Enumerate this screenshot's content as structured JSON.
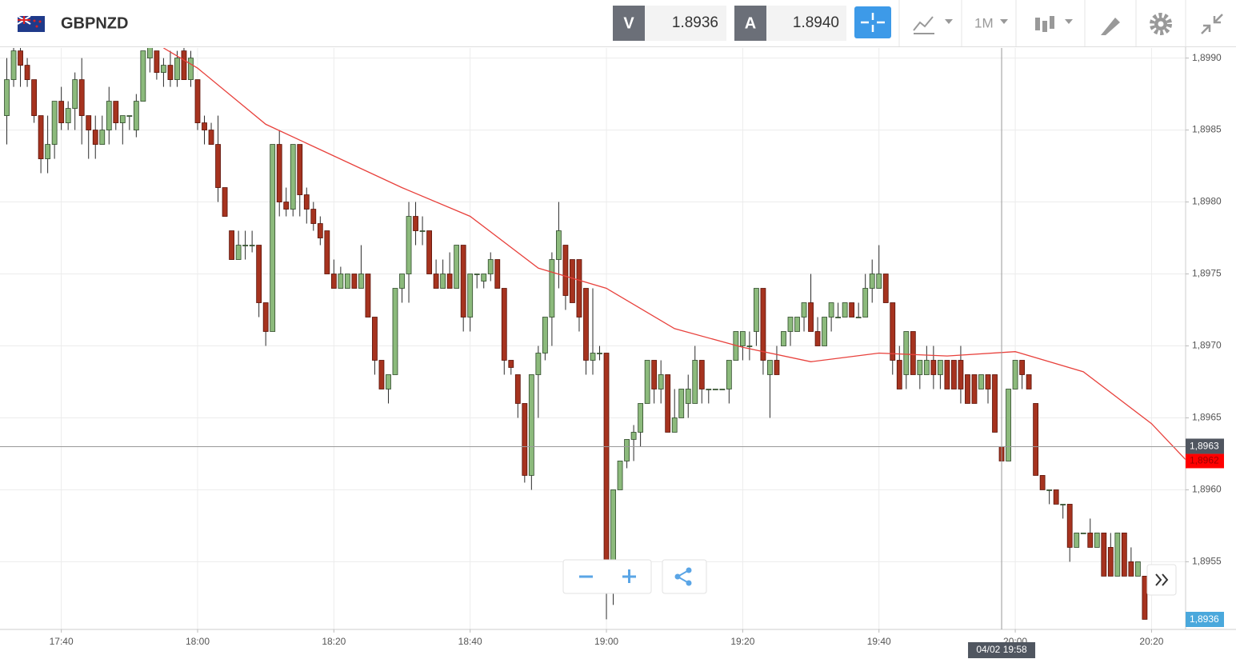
{
  "header": {
    "symbol": "GBPNZD",
    "bid_label": "V",
    "bid": "1.8936",
    "ask_label": "A",
    "ask": "1.8940",
    "timeframe": "1M"
  },
  "chart_data": {
    "type": "candlestick",
    "up_color": "#8cba7c",
    "down_color": "#a6331f",
    "grid": true,
    "x": [
      "17:32",
      "17:33",
      "17:34",
      "17:35",
      "17:36",
      "17:37",
      "17:38",
      "17:39",
      "17:40",
      "17:41",
      "17:42",
      "17:43",
      "17:44",
      "17:45",
      "17:46",
      "17:47",
      "17:48",
      "17:49",
      "17:50",
      "17:51",
      "17:52",
      "17:53",
      "17:54",
      "17:55",
      "17:56",
      "17:57",
      "17:58",
      "17:59",
      "18:00",
      "18:01",
      "18:02",
      "18:03",
      "18:04",
      "18:05",
      "18:06",
      "18:07",
      "18:08",
      "18:09",
      "18:10",
      "18:11",
      "18:12",
      "18:13",
      "18:14",
      "18:15",
      "18:16",
      "18:17",
      "18:18",
      "18:19",
      "18:20",
      "18:21",
      "18:22",
      "18:23",
      "18:24",
      "18:25",
      "18:26",
      "18:27",
      "18:28",
      "18:29",
      "18:30",
      "18:31",
      "18:32",
      "18:33",
      "18:34",
      "18:35",
      "18:36",
      "18:37",
      "18:38",
      "18:39",
      "18:40",
      "18:41",
      "18:42",
      "18:43",
      "18:44",
      "18:45",
      "18:46",
      "18:47",
      "18:48",
      "18:49",
      "18:50",
      "18:51",
      "18:52",
      "18:53",
      "18:54",
      "18:55",
      "18:56",
      "18:57",
      "18:58",
      "18:59",
      "19:00",
      "19:01",
      "19:02",
      "19:03",
      "19:04",
      "19:05",
      "19:06",
      "19:07",
      "19:08",
      "19:09",
      "19:10",
      "19:11",
      "19:12",
      "19:13",
      "19:14",
      "19:15",
      "19:16",
      "19:17",
      "19:18",
      "19:19",
      "19:20",
      "19:21",
      "19:22",
      "19:23",
      "19:24",
      "19:25",
      "19:26",
      "19:27",
      "19:28",
      "19:29",
      "19:30",
      "19:31",
      "19:32",
      "19:33",
      "19:34",
      "19:35",
      "19:36",
      "19:37",
      "19:38",
      "19:39",
      "19:40",
      "19:41",
      "19:42",
      "19:43",
      "19:44",
      "19:45",
      "19:46",
      "19:47",
      "19:48",
      "19:49",
      "19:50",
      "19:51",
      "19:52",
      "19:53",
      "19:54",
      "19:55",
      "19:56",
      "19:57",
      "19:58",
      "19:59",
      "20:00",
      "20:01",
      "20:02",
      "20:03",
      "20:04",
      "20:05",
      "20:06",
      "20:07",
      "20:08",
      "20:09",
      "20:10",
      "20:11",
      "20:12",
      "20:13",
      "20:14",
      "20:15",
      "20:16",
      "20:17",
      "20:18",
      "20:19"
    ],
    "open": [
      1.8986,
      1.89885,
      1.89905,
      1.89895,
      1.89885,
      1.8986,
      1.8983,
      1.8984,
      1.8987,
      1.89855,
      1.89865,
      1.89885,
      1.8986,
      1.8985,
      1.8984,
      1.8985,
      1.8987,
      1.89855,
      1.8986,
      1.8985,
      1.8987,
      1.899,
      1.89905,
      1.8989,
      1.89895,
      1.89885,
      1.89905,
      1.89885,
      1.89885,
      1.89855,
      1.8985,
      1.8984,
      1.8981,
      1.8978,
      1.8976,
      1.8977,
      1.8977,
      1.8977,
      1.8973,
      1.8971,
      1.8984,
      1.898,
      1.89795,
      1.8984,
      1.89805,
      1.89795,
      1.89785,
      1.8978,
      1.8975,
      1.8974,
      1.8974,
      1.8975,
      1.8974,
      1.8975,
      1.8972,
      1.8969,
      1.8967,
      1.8968,
      1.8974,
      1.8975,
      1.8979,
      1.8978,
      1.8978,
      1.8975,
      1.8974,
      1.8975,
      1.8974,
      1.8977,
      1.8972,
      1.8975,
      1.89745,
      1.8975,
      1.8976,
      1.8974,
      1.8969,
      1.8968,
      1.8966,
      1.8961,
      1.8968,
      1.89695,
      1.8972,
      1.8976,
      1.8977,
      1.8976,
      1.8976,
      1.8974,
      1.8969,
      1.89695,
      1.89695,
      1.8954,
      1.896,
      1.8962,
      1.89635,
      1.8964,
      1.8966,
      1.8969,
      1.8967,
      1.8968,
      1.8964,
      1.8965,
      1.8966,
      1.8966,
      1.8969,
      1.8967,
      1.8967,
      1.8967,
      1.8967,
      1.8969,
      1.897,
      1.897,
      1.8971,
      1.8974,
      1.8968,
      1.8969,
      1.897,
      1.8971,
      1.8971,
      1.8972,
      1.8973,
      1.8971,
      1.897,
      1.8972,
      1.8972,
      1.8972,
      1.8973,
      1.8972,
      1.8972,
      1.8974,
      1.8974,
      1.8975,
      1.8973,
      1.8969,
      1.8968,
      1.8971,
      1.8968,
      1.8968,
      1.8969,
      1.8968,
      1.8969,
      1.8969,
      1.8969,
      1.8968,
      1.8968,
      1.8967,
      1.8968,
      1.8968,
      1.8963,
      1.8962,
      1.8967,
      1.8969,
      1.8968,
      1.8966,
      1.8961,
      1.896,
      1.896,
      1.8959,
      1.8959,
      1.8956,
      1.8957,
      1.8957,
      1.8956,
      1.8957,
      1.8956,
      1.8954,
      1.8957,
      1.8955,
      1.8954,
      1.8954
    ],
    "high": [
      1.899,
      1.8991,
      1.8991,
      1.899,
      1.89885,
      1.8986,
      1.8986,
      1.8987,
      1.8988,
      1.8987,
      1.8989,
      1.899,
      1.8986,
      1.8986,
      1.8986,
      1.8988,
      1.8987,
      1.8986,
      1.8986,
      1.89875,
      1.89905,
      1.8991,
      1.89905,
      1.899,
      1.89905,
      1.89905,
      1.8991,
      1.89905,
      1.89885,
      1.8986,
      1.89855,
      1.8986,
      1.8981,
      1.8978,
      1.8978,
      1.8978,
      1.8978,
      1.8977,
      1.8973,
      1.8984,
      1.8985,
      1.8981,
      1.8984,
      1.8984,
      1.8981,
      1.898,
      1.8979,
      1.8978,
      1.8976,
      1.89755,
      1.8975,
      1.8975,
      1.8977,
      1.8975,
      1.8972,
      1.8969,
      1.8968,
      1.8974,
      1.8975,
      1.898,
      1.898,
      1.8979,
      1.8978,
      1.8976,
      1.8976,
      1.89765,
      1.8977,
      1.8977,
      1.8975,
      1.8975,
      1.8975,
      1.89765,
      1.8976,
      1.8974,
      1.8969,
      1.8968,
      1.8966,
      1.8968,
      1.897,
      1.8972,
      1.89765,
      1.898,
      1.8977,
      1.8976,
      1.8976,
      1.8974,
      1.8974,
      1.897,
      1.89695,
      1.896,
      1.8962,
      1.89635,
      1.89645,
      1.8966,
      1.8969,
      1.8969,
      1.8969,
      1.8968,
      1.8967,
      1.8967,
      1.8968,
      1.897,
      1.8969,
      1.8967,
      1.8967,
      1.8967,
      1.8969,
      1.8971,
      1.8971,
      1.8971,
      1.8974,
      1.8974,
      1.8969,
      1.897,
      1.8971,
      1.8972,
      1.8972,
      1.8973,
      1.8975,
      1.8972,
      1.8972,
      1.8973,
      1.8973,
      1.8973,
      1.8973,
      1.8973,
      1.8975,
      1.8976,
      1.8977,
      1.8975,
      1.8973,
      1.897,
      1.8971,
      1.8971,
      1.8969,
      1.897,
      1.897,
      1.8969,
      1.8969,
      1.8969,
      1.897,
      1.8968,
      1.8968,
      1.8968,
      1.8968,
      1.8968,
      1.8963,
      1.8967,
      1.8969,
      1.8969,
      1.8968,
      1.8966,
      1.8961,
      1.896,
      1.896,
      1.8959,
      1.8959,
      1.8957,
      1.8957,
      1.8958,
      1.8957,
      1.8957,
      1.8957,
      1.8957,
      1.8957,
      1.8956,
      1.8955,
      1.8954
    ],
    "low": [
      1.8984,
      1.8988,
      1.8988,
      1.8988,
      1.89855,
      1.8982,
      1.8982,
      1.8983,
      1.8985,
      1.8985,
      1.8985,
      1.8984,
      1.8983,
      1.8983,
      1.8984,
      1.8984,
      1.8985,
      1.8984,
      1.8985,
      1.89845,
      1.8987,
      1.8989,
      1.89885,
      1.8988,
      1.8988,
      1.8988,
      1.89885,
      1.8988,
      1.8985,
      1.8984,
      1.8984,
      1.898,
      1.8979,
      1.8976,
      1.8976,
      1.8976,
      1.89765,
      1.8972,
      1.897,
      1.8971,
      1.8979,
      1.8979,
      1.8979,
      1.8979,
      1.89785,
      1.8978,
      1.8977,
      1.8975,
      1.8974,
      1.8974,
      1.8974,
      1.8974,
      1.8974,
      1.8972,
      1.8968,
      1.8967,
      1.8966,
      1.8968,
      1.8973,
      1.8973,
      1.8977,
      1.8977,
      1.8975,
      1.8974,
      1.8974,
      1.8974,
      1.8974,
      1.8971,
      1.8971,
      1.8974,
      1.8974,
      1.89745,
      1.8974,
      1.8968,
      1.8968,
      1.8965,
      1.89605,
      1.896,
      1.8965,
      1.8969,
      1.897,
      1.8974,
      1.89725,
      1.8973,
      1.8971,
      1.8968,
      1.8968,
      1.8969,
      1.8951,
      1.8952,
      1.896,
      1.89615,
      1.8962,
      1.8963,
      1.8966,
      1.8966,
      1.8966,
      1.8964,
      1.8964,
      1.8965,
      1.8965,
      1.8966,
      1.8966,
      1.8966,
      1.8967,
      1.8967,
      1.8966,
      1.8969,
      1.8969,
      1.8969,
      1.897,
      1.8968,
      1.8965,
      1.8968,
      1.897,
      1.897,
      1.8971,
      1.8971,
      1.8971,
      1.897,
      1.897,
      1.8971,
      1.8972,
      1.8972,
      1.8972,
      1.8972,
      1.8972,
      1.8973,
      1.8974,
      1.8973,
      1.8968,
      1.8967,
      1.8967,
      1.8968,
      1.8967,
      1.8968,
      1.8967,
      1.8967,
      1.8967,
      1.8967,
      1.8966,
      1.8966,
      1.8966,
      1.8967,
      1.8966,
      1.8964,
      1.8962,
      1.8962,
      1.8967,
      1.8967,
      1.8967,
      1.8961,
      1.896,
      1.8959,
      1.8959,
      1.8958,
      1.8955,
      1.8956,
      1.8957,
      1.8956,
      1.8956,
      1.8954,
      1.8954,
      1.8954,
      1.8954,
      1.8954,
      1.8954,
      1.8951
    ],
    "close": [
      1.89885,
      1.89905,
      1.89895,
      1.89885,
      1.8986,
      1.8983,
      1.8984,
      1.8987,
      1.89855,
      1.89865,
      1.89885,
      1.8986,
      1.8985,
      1.8984,
      1.8985,
      1.8987,
      1.89855,
      1.8986,
      1.8986,
      1.8987,
      1.89905,
      1.8991,
      1.8989,
      1.89895,
      1.89885,
      1.899,
      1.89885,
      1.899,
      1.89855,
      1.8985,
      1.8984,
      1.8981,
      1.8979,
      1.8976,
      1.8977,
      1.8977,
      1.8977,
      1.8973,
      1.8971,
      1.8984,
      1.898,
      1.89795,
      1.8984,
      1.89805,
      1.89795,
      1.89785,
      1.89775,
      1.8975,
      1.8974,
      1.8975,
      1.8975,
      1.8974,
      1.8975,
      1.8972,
      1.8969,
      1.8967,
      1.8968,
      1.8974,
      1.8975,
      1.8979,
      1.8978,
      1.8978,
      1.8975,
      1.8974,
      1.8975,
      1.8974,
      1.8977,
      1.8972,
      1.8975,
      1.8975,
      1.8975,
      1.8976,
      1.8974,
      1.8969,
      1.89685,
      1.8966,
      1.8961,
      1.8968,
      1.89695,
      1.8972,
      1.8976,
      1.8978,
      1.89735,
      1.8973,
      1.8972,
      1.8969,
      1.89695,
      1.89695,
      1.8954,
      1.896,
      1.8962,
      1.89635,
      1.8964,
      1.8966,
      1.8969,
      1.8967,
      1.8968,
      1.8964,
      1.8965,
      1.8967,
      1.8967,
      1.8969,
      1.8967,
      1.8967,
      1.8967,
      1.8967,
      1.8969,
      1.8971,
      1.8971,
      1.897,
      1.8974,
      1.8969,
      1.8969,
      1.8968,
      1.8971,
      1.8972,
      1.8972,
      1.8973,
      1.8971,
      1.897,
      1.8972,
      1.8973,
      1.8972,
      1.8973,
      1.8972,
      1.8972,
      1.8974,
      1.8975,
      1.8975,
      1.8973,
      1.8969,
      1.8967,
      1.8971,
      1.8968,
      1.8969,
      1.8969,
      1.8968,
      1.8969,
      1.8967,
      1.8967,
      1.8967,
      1.8966,
      1.8966,
      1.8968,
      1.8967,
      1.8964,
      1.8962,
      1.8967,
      1.8969,
      1.8968,
      1.8967,
      1.8961,
      1.896,
      1.896,
      1.8959,
      1.8959,
      1.8956,
      1.8957,
      1.8957,
      1.8956,
      1.8957,
      1.8954,
      1.8954,
      1.8957,
      1.8954,
      1.8954,
      1.8955,
      1.8951
    ],
    "moving_average": {
      "color": "#e8413c",
      "x": [
        "17:55",
        "18:00",
        "18:10",
        "18:20",
        "18:30",
        "18:40",
        "18:50",
        "19:00",
        "19:10",
        "19:20",
        "19:30",
        "19:40",
        "19:50",
        "20:00",
        "20:10",
        "20:20",
        "20:25"
      ],
      "values": [
        1.89907,
        1.89893,
        1.89854,
        1.89832,
        1.8981,
        1.8979,
        1.89754,
        1.8974,
        1.89712,
        1.89699,
        1.89689,
        1.89695,
        1.89693,
        1.89696,
        1.89682,
        1.89646,
        1.89621
      ]
    },
    "xlim": [
      "17:31",
      "20:25"
    ],
    "xticks": [
      "17:40",
      "18:00",
      "18:20",
      "18:40",
      "19:00",
      "19:20",
      "19:40",
      "20:00",
      "20:20"
    ],
    "ylim": [
      1.89503,
      1.89907
    ],
    "yticks": [
      {
        "value": 1.8955,
        "label": "1,8955"
      },
      {
        "value": 1.896,
        "label": "1,8960"
      },
      {
        "value": 1.8965,
        "label": "1,8965"
      },
      {
        "value": 1.897,
        "label": "1,8970"
      },
      {
        "value": 1.8975,
        "label": "1,8975"
      },
      {
        "value": 1.898,
        "label": "1,8980"
      },
      {
        "value": 1.8985,
        "label": "1,8985"
      },
      {
        "value": 1.899,
        "label": "1,8990"
      }
    ],
    "crosshair": {
      "x": "19:58",
      "label": "04/02 19:58",
      "price": {
        "value": 1.8963,
        "label": "1,8963"
      }
    },
    "last_price": {
      "value": 1.8962,
      "label": "1,8962"
    },
    "bid_tag": "1,8936"
  }
}
